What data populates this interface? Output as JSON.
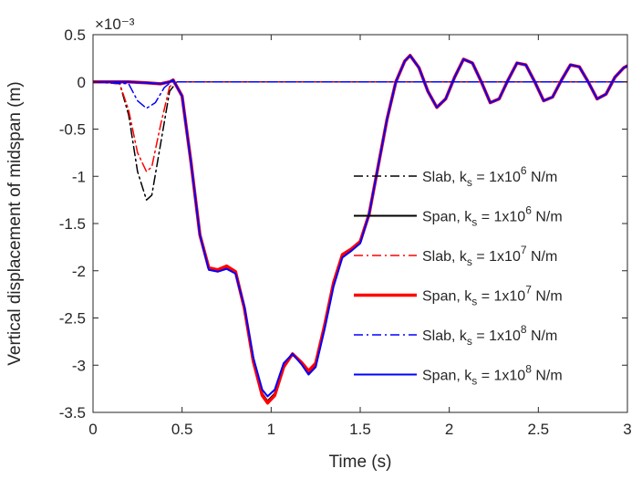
{
  "chart_data": {
    "type": "line",
    "title": "",
    "xlabel": "Time (s)",
    "ylabel": "Vertical displacement of midspan (m)",
    "y_exponent_label": "×10⁻³",
    "xlim": [
      0,
      3
    ],
    "ylim": [
      -3.5,
      0.5
    ],
    "x_ticks": [
      0,
      0.5,
      1,
      1.5,
      2,
      2.5,
      3
    ],
    "x_tick_labels": [
      "0",
      "0.5",
      "1",
      "1.5",
      "2",
      "2.5",
      "3"
    ],
    "y_ticks": [
      0.5,
      0,
      -0.5,
      -1,
      -1.5,
      -2,
      -2.5,
      -3,
      -3.5
    ],
    "y_tick_labels": [
      "0.5",
      "0",
      "-0.5",
      "-1",
      "-1.5",
      "-2",
      "-2.5",
      "-3",
      "-3.5"
    ],
    "grid": false,
    "legend_position": "right",
    "units_note": "y values are in units of 10^-3 m",
    "series": [
      {
        "name": "Slab, ks = 1x10^6 N/m",
        "legend": {
          "a": "Slab, k",
          "sub": "s",
          "b": " = 1x10",
          "sup": "6",
          "c": " N/m"
        },
        "color": "#000000",
        "style": "dashdot",
        "width": 1.5,
        "x": [
          0,
          0.15,
          0.2,
          0.25,
          0.3,
          0.33,
          0.38,
          0.43,
          0.47,
          0.55,
          0.7,
          1.0,
          1.5,
          2.0,
          2.5,
          3.0
        ],
        "y": [
          0,
          -0.02,
          -0.35,
          -0.95,
          -1.25,
          -1.2,
          -0.65,
          -0.1,
          0,
          0,
          0,
          0,
          0,
          0,
          0,
          0
        ]
      },
      {
        "name": "Span, ks = 1x10^6 N/m",
        "legend": {
          "a": "Span, k",
          "sub": "s",
          "b": " = 1x10",
          "sup": "6",
          "c": " N/m"
        },
        "color": "#000000",
        "style": "solid",
        "width": 2,
        "x": [
          0,
          0.2,
          0.3,
          0.38,
          0.43,
          0.45,
          0.5,
          0.55,
          0.6,
          0.65,
          0.7,
          0.75,
          0.8,
          0.85,
          0.9,
          0.95,
          0.98,
          1.02,
          1.07,
          1.12,
          1.17,
          1.21,
          1.25,
          1.3,
          1.35,
          1.4,
          1.45,
          1.5,
          1.55,
          1.6,
          1.65,
          1.7,
          1.75,
          1.78,
          1.83,
          1.88,
          1.93,
          1.98,
          2.03,
          2.08,
          2.13,
          2.18,
          2.23,
          2.28,
          2.33,
          2.38,
          2.43,
          2.48,
          2.53,
          2.58,
          2.63,
          2.68,
          2.73,
          2.78,
          2.83,
          2.88,
          2.93,
          2.98,
          3.0
        ],
        "y": [
          0,
          0,
          -0.01,
          -0.02,
          0,
          0.02,
          -0.15,
          -0.85,
          -1.62,
          -1.98,
          -2.0,
          -1.96,
          -2.02,
          -2.4,
          -2.95,
          -3.3,
          -3.38,
          -3.3,
          -3.0,
          -2.88,
          -2.98,
          -3.08,
          -3.0,
          -2.6,
          -2.15,
          -1.85,
          -1.78,
          -1.7,
          -1.4,
          -0.9,
          -0.4,
          0.0,
          0.22,
          0.28,
          0.15,
          -0.1,
          -0.27,
          -0.18,
          0.05,
          0.24,
          0.2,
          0.0,
          -0.22,
          -0.18,
          0.02,
          0.2,
          0.18,
          0.0,
          -0.2,
          -0.16,
          0.02,
          0.18,
          0.16,
          0.0,
          -0.18,
          -0.13,
          0.05,
          0.15,
          0.17
        ]
      },
      {
        "name": "Slab, ks = 1x10^7 N/m",
        "legend": {
          "a": "Slab, k",
          "sub": "s",
          "b": " = 1x10",
          "sup": "7",
          "c": " N/m"
        },
        "color": "#ff0000",
        "style": "dashdot",
        "width": 1.5,
        "x": [
          0,
          0.15,
          0.2,
          0.25,
          0.3,
          0.33,
          0.38,
          0.43,
          0.47,
          0.55,
          0.7,
          1.0,
          1.5,
          2.0,
          2.5,
          3.0
        ],
        "y": [
          0,
          -0.02,
          -0.3,
          -0.75,
          -0.95,
          -0.9,
          -0.45,
          -0.05,
          0,
          0,
          0,
          0,
          0,
          0,
          0,
          0
        ]
      },
      {
        "name": "Span, ks = 1x10^7 N/m",
        "legend": {
          "a": "Span, k",
          "sub": "s",
          "b": " = 1x10",
          "sup": "7",
          "c": " N/m"
        },
        "color": "#ff0000",
        "style": "solid",
        "width": 3.5,
        "x": [
          0,
          0.2,
          0.3,
          0.38,
          0.43,
          0.45,
          0.5,
          0.55,
          0.6,
          0.65,
          0.7,
          0.75,
          0.8,
          0.85,
          0.9,
          0.95,
          0.98,
          1.02,
          1.07,
          1.12,
          1.17,
          1.21,
          1.25,
          1.3,
          1.35,
          1.4,
          1.45,
          1.5,
          1.55,
          1.6,
          1.65,
          1.7,
          1.75,
          1.78,
          1.83,
          1.88,
          1.93,
          1.98,
          2.03,
          2.08,
          2.13,
          2.18,
          2.23,
          2.28,
          2.33,
          2.38,
          2.43,
          2.48,
          2.53,
          2.58,
          2.63,
          2.68,
          2.73,
          2.78,
          2.83,
          2.88,
          2.93,
          2.98,
          3.0
        ],
        "y": [
          0,
          0,
          -0.01,
          -0.02,
          0,
          0.02,
          -0.15,
          -0.85,
          -1.62,
          -1.97,
          -1.99,
          -1.95,
          -2.01,
          -2.4,
          -2.96,
          -3.32,
          -3.4,
          -3.32,
          -3.02,
          -2.88,
          -2.97,
          -3.06,
          -2.98,
          -2.58,
          -2.13,
          -1.83,
          -1.77,
          -1.69,
          -1.4,
          -0.9,
          -0.4,
          0.0,
          0.22,
          0.28,
          0.15,
          -0.1,
          -0.27,
          -0.18,
          0.05,
          0.24,
          0.2,
          0.0,
          -0.22,
          -0.18,
          0.02,
          0.2,
          0.18,
          0.0,
          -0.2,
          -0.16,
          0.02,
          0.18,
          0.16,
          0.0,
          -0.18,
          -0.13,
          0.05,
          0.15,
          0.17
        ]
      },
      {
        "name": "Slab, ks = 1x10^8 N/m",
        "legend": {
          "a": "Slab, k",
          "sub": "s",
          "b": " = 1x10",
          "sup": "8",
          "c": " N/m"
        },
        "color": "#0000ff",
        "style": "dashdot",
        "width": 1.5,
        "x": [
          0,
          0.2,
          0.25,
          0.3,
          0.35,
          0.4,
          0.44,
          0.48,
          0.6,
          1.0,
          1.5,
          2.0,
          2.5,
          3.0
        ],
        "y": [
          0,
          -0.02,
          -0.2,
          -0.28,
          -0.22,
          -0.06,
          0,
          0,
          0,
          0,
          0,
          0,
          0,
          0
        ]
      },
      {
        "name": "Span, ks = 1x10^8 N/m",
        "legend": {
          "a": "Span, k",
          "sub": "s",
          "b": " = 1x10",
          "sup": "8",
          "c": " N/m"
        },
        "color": "#0000ff",
        "style": "solid",
        "width": 2,
        "x": [
          0,
          0.2,
          0.3,
          0.38,
          0.43,
          0.45,
          0.5,
          0.55,
          0.6,
          0.65,
          0.7,
          0.75,
          0.8,
          0.85,
          0.9,
          0.95,
          0.98,
          1.02,
          1.07,
          1.12,
          1.17,
          1.21,
          1.25,
          1.3,
          1.35,
          1.4,
          1.45,
          1.5,
          1.55,
          1.6,
          1.65,
          1.7,
          1.75,
          1.78,
          1.83,
          1.88,
          1.93,
          1.98,
          2.03,
          2.08,
          2.13,
          2.18,
          2.23,
          2.28,
          2.33,
          2.38,
          2.43,
          2.48,
          2.53,
          2.58,
          2.63,
          2.68,
          2.73,
          2.78,
          2.83,
          2.88,
          2.93,
          2.98,
          3.0
        ],
        "y": [
          0,
          0,
          -0.01,
          -0.02,
          0,
          0.02,
          -0.15,
          -0.85,
          -1.62,
          -1.99,
          -2.01,
          -1.98,
          -2.03,
          -2.38,
          -2.92,
          -3.26,
          -3.33,
          -3.26,
          -2.98,
          -2.88,
          -2.99,
          -3.1,
          -3.02,
          -2.62,
          -2.17,
          -1.86,
          -1.79,
          -1.71,
          -1.4,
          -0.9,
          -0.4,
          0.0,
          0.22,
          0.28,
          0.15,
          -0.1,
          -0.27,
          -0.18,
          0.05,
          0.24,
          0.2,
          0.0,
          -0.22,
          -0.18,
          0.02,
          0.2,
          0.18,
          0.0,
          -0.2,
          -0.16,
          0.02,
          0.18,
          0.16,
          0.0,
          -0.18,
          -0.13,
          0.05,
          0.15,
          0.17
        ]
      }
    ]
  }
}
